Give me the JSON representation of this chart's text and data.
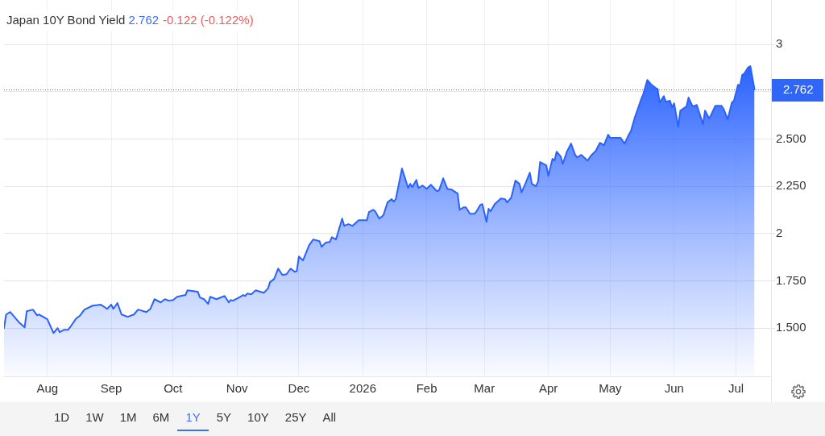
{
  "chart_data": {
    "type": "area",
    "title": "Japan 10Y Bond Yield",
    "x": [
      "2025-07-11",
      "2025-07-12",
      "2025-07-14",
      "2025-07-18",
      "2025-07-21",
      "2025-07-22",
      "2025-07-25",
      "2025-07-27",
      "2025-07-28",
      "2025-07-30",
      "2025-08-01",
      "2025-08-04",
      "2025-08-06",
      "2025-08-07",
      "2025-08-09",
      "2025-08-11",
      "2025-08-12",
      "2025-08-15",
      "2025-08-17",
      "2025-08-19",
      "2025-08-23",
      "2025-08-27",
      "2025-08-30",
      "2025-09-01",
      "2025-09-02",
      "2025-09-04",
      "2025-09-06",
      "2025-09-09",
      "2025-09-12",
      "2025-09-14",
      "2025-09-18",
      "2025-09-20",
      "2025-09-22",
      "2025-09-25",
      "2025-09-27",
      "2025-09-29",
      "2025-10-01",
      "2025-10-03",
      "2025-10-07",
      "2025-10-08",
      "2025-10-13",
      "2025-10-14",
      "2025-10-16",
      "2025-10-18",
      "2025-10-19",
      "2025-10-22",
      "2025-10-26",
      "2025-10-28",
      "2025-10-29",
      "2025-10-30",
      "2025-11-02",
      "2025-11-04",
      "2025-11-05",
      "2025-11-06",
      "2025-11-08",
      "2025-11-10",
      "2025-11-14",
      "2025-11-16",
      "2025-11-17",
      "2025-11-19",
      "2025-11-21",
      "2025-11-23",
      "2025-11-25",
      "2025-11-27",
      "2025-11-29",
      "2025-11-30",
      "2025-12-01",
      "2025-12-03",
      "2025-12-06",
      "2025-12-08",
      "2025-12-11",
      "2025-12-12",
      "2025-12-14",
      "2025-12-16",
      "2025-12-17",
      "2025-12-19",
      "2025-12-22",
      "2025-12-23",
      "2025-12-25",
      "2025-12-27",
      "2025-12-30",
      "2026-01-03",
      "2026-01-04",
      "2026-01-06",
      "2026-01-07",
      "2026-01-09",
      "2026-01-11",
      "2026-01-13",
      "2026-01-15",
      "2026-01-16",
      "2026-01-17",
      "2026-01-20",
      "2026-01-23",
      "2026-01-24",
      "2026-01-25",
      "2026-01-27",
      "2026-01-28",
      "2026-01-30",
      "2026-02-01",
      "2026-02-03",
      "2026-02-06",
      "2026-02-07",
      "2026-02-09",
      "2026-02-11",
      "2026-02-13",
      "2026-02-16",
      "2026-02-17",
      "2026-02-19",
      "2026-02-20",
      "2026-02-22",
      "2026-02-24",
      "2026-02-25",
      "2026-02-27",
      "2026-02-28",
      "2026-03-02",
      "2026-03-03",
      "2026-03-04",
      "2026-03-06",
      "2026-03-09",
      "2026-03-11",
      "2026-03-12",
      "2026-03-14",
      "2026-03-16",
      "2026-03-18",
      "2026-03-19",
      "2026-03-21",
      "2026-03-23",
      "2026-03-24",
      "2026-03-26",
      "2026-03-27",
      "2026-03-28",
      "2026-03-31",
      "2026-04-01",
      "2026-04-03",
      "2026-04-04",
      "2026-04-05",
      "2026-04-07",
      "2026-04-08",
      "2026-04-10",
      "2026-04-12",
      "2026-04-14",
      "2026-04-15",
      "2026-04-17",
      "2026-04-20",
      "2026-04-22",
      "2026-04-24",
      "2026-04-26",
      "2026-04-28",
      "2026-04-30",
      "2026-05-01",
      "2026-05-06",
      "2026-05-08",
      "2026-05-10",
      "2026-05-11",
      "2026-05-13",
      "2026-05-16",
      "2026-05-17",
      "2026-05-19",
      "2026-05-21",
      "2026-05-23",
      "2026-05-24",
      "2026-05-25",
      "2026-05-27",
      "2026-05-28",
      "2026-05-30",
      "2026-05-31",
      "2026-06-01",
      "2026-06-03",
      "2026-06-04",
      "2026-06-07",
      "2026-06-08",
      "2026-06-10",
      "2026-06-12",
      "2026-06-15",
      "2026-06-16",
      "2026-06-18",
      "2026-06-19",
      "2026-06-21",
      "2026-06-24",
      "2026-06-25",
      "2026-06-27",
      "2026-06-29",
      "2026-06-30",
      "2026-07-02",
      "2026-07-03",
      "2026-07-04",
      "2026-07-05",
      "2026-07-07",
      "2026-07-08",
      "2026-07-10"
    ],
    "values": [
      1.5,
      1.572,
      1.585,
      1.534,
      1.504,
      1.589,
      1.598,
      1.568,
      1.572,
      1.56,
      1.547,
      1.474,
      1.5,
      1.479,
      1.491,
      1.491,
      1.504,
      1.551,
      1.568,
      1.598,
      1.619,
      1.624,
      1.602,
      1.624,
      1.602,
      1.632,
      1.572,
      1.56,
      1.572,
      1.598,
      1.585,
      1.602,
      1.653,
      1.636,
      1.653,
      1.645,
      1.649,
      1.666,
      1.675,
      1.7,
      1.692,
      1.662,
      1.653,
      1.628,
      1.666,
      1.653,
      1.67,
      1.636,
      1.649,
      1.645,
      1.662,
      1.675,
      1.67,
      1.683,
      1.679,
      1.7,
      1.687,
      1.709,
      1.743,
      1.76,
      1.815,
      1.781,
      1.785,
      1.815,
      1.798,
      1.802,
      1.879,
      1.858,
      1.939,
      1.969,
      1.96,
      1.93,
      1.952,
      1.956,
      1.981,
      1.969,
      2.079,
      2.041,
      2.05,
      2.041,
      2.071,
      2.071,
      2.114,
      2.126,
      2.118,
      2.079,
      2.097,
      2.165,
      2.182,
      2.169,
      2.182,
      2.344,
      2.241,
      2.263,
      2.246,
      2.284,
      2.241,
      2.254,
      2.237,
      2.258,
      2.224,
      2.229,
      2.292,
      2.237,
      2.233,
      2.212,
      2.126,
      2.139,
      2.139,
      2.105,
      2.105,
      2.114,
      2.152,
      2.156,
      2.062,
      2.131,
      2.118,
      2.156,
      2.186,
      2.182,
      2.165,
      2.19,
      2.28,
      2.263,
      2.218,
      2.267,
      2.322,
      2.263,
      2.25,
      2.275,
      2.378,
      2.361,
      2.305,
      2.395,
      2.386,
      2.433,
      2.408,
      2.369,
      2.433,
      2.476,
      2.416,
      2.403,
      2.416,
      2.386,
      2.416,
      2.437,
      2.48,
      2.467,
      2.523,
      2.506,
      2.506,
      2.476,
      2.523,
      2.54,
      2.616,
      2.71,
      2.736,
      2.812,
      2.787,
      2.77,
      2.765,
      2.693,
      2.727,
      2.697,
      2.702,
      2.667,
      2.689,
      2.565,
      2.65,
      2.672,
      2.719,
      2.672,
      2.68,
      2.578,
      2.65,
      2.608,
      2.629,
      2.676,
      2.676,
      2.659,
      2.604,
      2.693,
      2.702,
      2.787,
      2.782,
      2.838,
      2.846,
      2.88,
      2.885,
      2.762
    ],
    "color": "#2962ff",
    "marker": "none",
    "line_style": "solid",
    "xlim": [
      "2025-07-11",
      "2026-07-18"
    ],
    "xticks": [
      {
        "value": "2025-08-01",
        "label": "Aug"
      },
      {
        "value": "2025-09-01",
        "label": "Sep"
      },
      {
        "value": "2025-10-01",
        "label": "Oct"
      },
      {
        "value": "2025-11-01",
        "label": "Nov"
      },
      {
        "value": "2025-12-01",
        "label": "Dec"
      },
      {
        "value": "2026-01-01",
        "label": "2026"
      },
      {
        "value": "2026-02-01",
        "label": "Feb"
      },
      {
        "value": "2026-03-01",
        "label": "Mar"
      },
      {
        "value": "2026-04-01",
        "label": "Apr"
      },
      {
        "value": "2026-05-01",
        "label": "May"
      },
      {
        "value": "2026-06-01",
        "label": "Jun"
      },
      {
        "value": "2026-07-01",
        "label": "Jul"
      }
    ],
    "ylim": [
      1.245,
      3.235
    ],
    "yticks": [
      {
        "value": 1.5,
        "label": "1.500"
      },
      {
        "value": 1.75,
        "label": "1.750"
      },
      2,
      {
        "value": 2.25,
        "label": "2.250"
      },
      {
        "value": 2.5,
        "label": "2.500"
      },
      {
        "value": 2.75,
        "label": null
      },
      3
    ],
    "grid": true,
    "ref_lines": [
      {
        "axis": "y",
        "value": 2.762,
        "label": "2.762",
        "color": "#2f66f6",
        "line_style": "dotted"
      }
    ],
    "annotations": [
      "2.762",
      "-0.122 (-0.122%)",
      "1D",
      "1W",
      "1M",
      "6M",
      "1Y",
      "5Y",
      "10Y",
      "25Y",
      "All"
    ]
  }
}
